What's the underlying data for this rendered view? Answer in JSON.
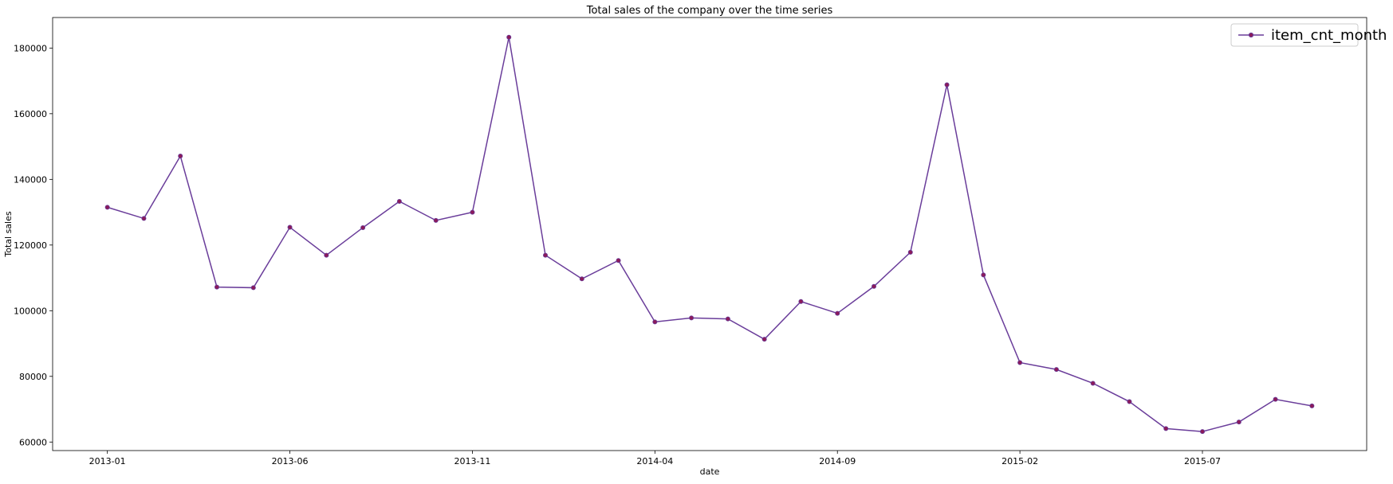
{
  "chart_data": {
    "type": "line",
    "title": "Total sales of the company over the time series",
    "xlabel": "date",
    "ylabel": "Total sales",
    "legend_position": "top-right",
    "grid": false,
    "series_color": "#6a3d9a",
    "marker_color": "#8b1a5a",
    "x_ticks": [
      {
        "label": "2013-01",
        "index": 0
      },
      {
        "label": "2013-06",
        "index": 5
      },
      {
        "label": "2013-11",
        "index": 10
      },
      {
        "label": "2014-04",
        "index": 15
      },
      {
        "label": "2014-09",
        "index": 20
      },
      {
        "label": "2015-02",
        "index": 25
      },
      {
        "label": "2015-07",
        "index": 30
      }
    ],
    "xlim": [
      -1.5,
      34.5
    ],
    "ylim": [
      57400,
      189300
    ],
    "y_ticks": [
      60000,
      80000,
      100000,
      120000,
      140000,
      160000,
      180000
    ],
    "series": [
      {
        "name": "item_cnt_month",
        "x": [
          "2013-01",
          "2013-02",
          "2013-03",
          "2013-04",
          "2013-05",
          "2013-06",
          "2013-07",
          "2013-08",
          "2013-09",
          "2013-10",
          "2013-11",
          "2013-12",
          "2014-01",
          "2014-02",
          "2014-03",
          "2014-04",
          "2014-05",
          "2014-06",
          "2014-07",
          "2014-08",
          "2014-09",
          "2014-10",
          "2014-11",
          "2014-12",
          "2015-01",
          "2015-02",
          "2015-03",
          "2015-04",
          "2015-05",
          "2015-06",
          "2015-07",
          "2015-08",
          "2015-09",
          "2015-10"
        ],
        "values": [
          131500,
          128100,
          147100,
          107200,
          107000,
          125400,
          116900,
          125300,
          133300,
          127500,
          130000,
          183300,
          116900,
          109700,
          115300,
          96600,
          97800,
          97500,
          91300,
          102800,
          99200,
          107400,
          117800,
          168800,
          110900,
          84200,
          82100,
          77900,
          72300,
          64100,
          63200,
          66100,
          73000,
          71000
        ]
      }
    ]
  }
}
